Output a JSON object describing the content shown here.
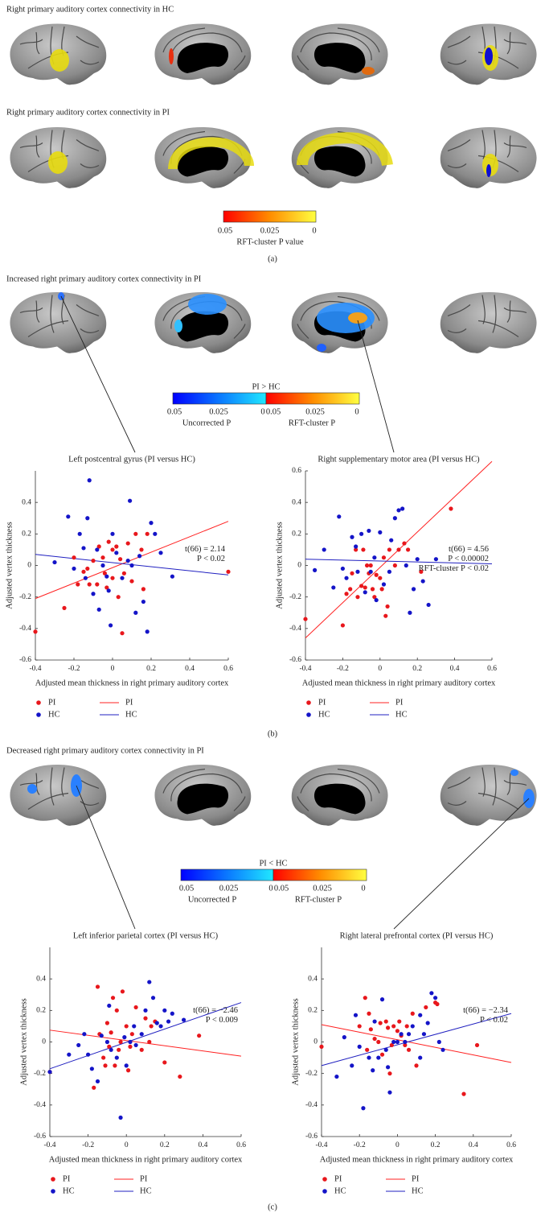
{
  "panel_a": {
    "title_hc": "Right primary auditory cortex connectivity in HC",
    "title_pi": "Right primary auditory cortex connectivity in PI",
    "colorbar": {
      "lim": [
        0.05,
        0
      ],
      "ticks": [
        0.05,
        0.025,
        0
      ],
      "caption": "RFT-cluster P value"
    },
    "label": "(a)"
  },
  "panel_b": {
    "title": "Increased right primary auditory cortex connectivity in PI",
    "colorbar": {
      "title": "PI > HC",
      "uncorrected": {
        "lim": [
          0.05,
          0
        ],
        "ticks": [
          0.05,
          0.025,
          0
        ],
        "caption": "Uncorrected P"
      },
      "rft": {
        "lim": [
          0.05,
          0
        ],
        "ticks": [
          0.05,
          0.025,
          0
        ],
        "caption": "RFT-cluster P"
      }
    },
    "label": "(b)"
  },
  "panel_c": {
    "title": "Decreased right primary auditory cortex connectivity in PI",
    "colorbar": {
      "title": "PI < HC",
      "uncorrected": {
        "lim": [
          0.05,
          0
        ],
        "ticks": [
          0.05,
          0.025,
          0
        ],
        "caption": "Uncorrected P"
      },
      "rft": {
        "lim": [
          0.05,
          0
        ],
        "ticks": [
          0.05,
          0.025,
          0
        ],
        "caption": "RFT-cluster P"
      }
    },
    "label": "(c)"
  },
  "chart_data": [
    {
      "type": "scatter",
      "title": "Left postcentral gyrus (PI versus HC)",
      "xlabel": "Adjusted mean thickness in right primary auditory cortex",
      "ylabel": "Adjusted vertex thickness",
      "xlim": [
        -0.4,
        0.6
      ],
      "ylim": [
        -0.6,
        0.6
      ],
      "xticks": [
        -0.4,
        -0.2,
        0,
        0.2,
        0.4,
        0.6
      ],
      "yticks": [
        -0.6,
        -0.4,
        -0.2,
        0,
        0.2,
        0.4
      ],
      "series": [
        {
          "name": "PI",
          "color": "#e8171c",
          "x": [
            -0.4,
            -0.25,
            -0.2,
            -0.18,
            -0.15,
            -0.12,
            -0.1,
            -0.08,
            -0.07,
            -0.05,
            -0.04,
            -0.03,
            -0.02,
            0,
            0,
            0.02,
            0.03,
            0.05,
            0.06,
            0.08,
            0.1,
            0.12,
            0.15,
            0.16,
            0.18,
            0.6,
            -0.13,
            0.04
          ],
          "values": [
            -0.42,
            -0.27,
            0.05,
            -0.12,
            -0.04,
            -0.12,
            0.03,
            -0.12,
            0.12,
            0.05,
            -0.05,
            -0.14,
            0.15,
            0.1,
            -0.08,
            0.12,
            -0.2,
            -0.43,
            -0.05,
            0.14,
            -0.1,
            0.2,
            0.1,
            -0.15,
            0.2,
            -0.04,
            -0.02,
            0.04
          ]
        },
        {
          "name": "HC",
          "color": "#1414c8",
          "x": [
            -0.3,
            -0.23,
            -0.2,
            -0.17,
            -0.15,
            -0.13,
            -0.12,
            -0.1,
            -0.08,
            -0.07,
            -0.05,
            -0.03,
            -0.02,
            -0.01,
            0,
            0.02,
            0.05,
            0.08,
            0.09,
            0.1,
            0.12,
            0.14,
            0.16,
            0.18,
            0.2,
            0.22,
            0.25,
            0.31,
            -0.14
          ],
          "values": [
            0.02,
            0.31,
            -0.02,
            0.2,
            0.11,
            0.3,
            0.54,
            -0.18,
            0.1,
            -0.28,
            0,
            -0.07,
            -0.16,
            -0.38,
            0.2,
            0.08,
            -0.08,
            0.03,
            0.41,
            0,
            -0.3,
            0.06,
            -0.23,
            -0.42,
            0.27,
            0.2,
            0.08,
            -0.07,
            -0.08
          ]
        }
      ],
      "fit_lines": [
        {
          "name": "PI",
          "color": "#ff2020",
          "x": [
            -0.4,
            0.6
          ],
          "values": [
            -0.21,
            0.28
          ]
        },
        {
          "name": "HC",
          "color": "#2020c0",
          "x": [
            -0.4,
            0.6
          ],
          "values": [
            0.07,
            -0.06
          ]
        }
      ],
      "annotations": [
        "t(66) = 2.14",
        "P < 0.02"
      ]
    },
    {
      "type": "scatter",
      "title": "Right supplementary motor area (PI versus HC)",
      "xlabel": "Adjusted mean thickness in right primary auditory cortex",
      "ylabel": "Adjusted vertex thickness",
      "xlim": [
        -0.4,
        0.6
      ],
      "ylim": [
        -0.6,
        0.6
      ],
      "xticks": [
        -0.4,
        -0.2,
        0,
        0.2,
        0.4,
        0.6
      ],
      "yticks": [
        -0.6,
        -0.4,
        -0.2,
        0,
        0.2,
        0.4,
        0.6
      ],
      "series": [
        {
          "name": "PI",
          "color": "#e8171c",
          "x": [
            -0.4,
            -0.2,
            -0.18,
            -0.16,
            -0.15,
            -0.13,
            -0.12,
            -0.1,
            -0.08,
            -0.07,
            -0.06,
            -0.05,
            -0.04,
            -0.03,
            -0.02,
            0,
            0.01,
            0.02,
            0.03,
            0.04,
            0.05,
            0.08,
            0.1,
            0.13,
            0.15,
            0.22,
            0.38,
            -0.09
          ],
          "values": [
            -0.34,
            -0.38,
            -0.18,
            -0.15,
            -0.05,
            0.1,
            -0.2,
            -0.13,
            -0.14,
            0,
            -0.05,
            0,
            -0.15,
            -0.2,
            -0.06,
            -0.08,
            -0.15,
            0.05,
            -0.32,
            -0.26,
            0.1,
            0,
            0.1,
            0.14,
            0.1,
            -0.04,
            0.36,
            0.1
          ]
        },
        {
          "name": "HC",
          "color": "#1414c8",
          "x": [
            -0.3,
            -0.25,
            -0.22,
            -0.2,
            -0.18,
            -0.15,
            -0.13,
            -0.12,
            -0.1,
            -0.08,
            -0.06,
            -0.05,
            -0.03,
            -0.02,
            0,
            0.02,
            0.05,
            0.06,
            0.08,
            0.1,
            0.12,
            0.14,
            0.16,
            0.18,
            0.2,
            0.23,
            0.26,
            0.3,
            -0.35
          ],
          "values": [
            0.1,
            -0.14,
            0.31,
            -0.02,
            -0.08,
            0.18,
            0.12,
            -0.04,
            0.2,
            -0.17,
            0.22,
            -0.04,
            0.05,
            -0.22,
            0.21,
            -0.12,
            -0.04,
            0.16,
            0.3,
            0.35,
            0.36,
            0,
            -0.3,
            -0.15,
            0.04,
            -0.1,
            -0.25,
            0.04,
            -0.03
          ]
        }
      ],
      "fit_lines": [
        {
          "name": "PI",
          "color": "#ff2020",
          "x": [
            -0.4,
            0.6
          ],
          "values": [
            -0.46,
            0.66
          ]
        },
        {
          "name": "HC",
          "color": "#2020c0",
          "x": [
            -0.4,
            0.6
          ],
          "values": [
            0.04,
            0.01
          ]
        }
      ],
      "annotations": [
        "t(66) = 4.56",
        "P < 0.00002",
        "RFT-cluster P < 0.02"
      ]
    },
    {
      "type": "scatter",
      "title": "Left inferior parietal cortex (PI versus HC)",
      "xlabel": "Adjusted mean thickness in right primary auditory cortex",
      "ylabel": "Adjusted vertex thickness",
      "xlim": [
        -0.4,
        0.6
      ],
      "ylim": [
        -0.6,
        0.6
      ],
      "xticks": [
        -0.4,
        -0.2,
        0,
        0.2,
        0.4,
        0.6
      ],
      "yticks": [
        -0.6,
        -0.4,
        -0.2,
        0,
        0.2,
        0.4
      ],
      "series": [
        {
          "name": "PI",
          "color": "#e8171c",
          "x": [
            -0.4,
            -0.17,
            -0.15,
            -0.14,
            -0.12,
            -0.1,
            -0.09,
            -0.08,
            -0.07,
            -0.06,
            -0.05,
            -0.04,
            -0.03,
            -0.02,
            0,
            0.01,
            0.02,
            0.03,
            0.05,
            0.08,
            0.1,
            0.12,
            0.15,
            0.2,
            0.28,
            0.38,
            -0.11,
            0.13
          ],
          "values": [
            -0.19,
            -0.29,
            0.35,
            0.05,
            -0.1,
            0.12,
            -0.03,
            0.06,
            0.28,
            -0.15,
            0.2,
            -0.05,
            0,
            0.32,
            0.1,
            -0.18,
            -0.03,
            0.05,
            0.22,
            -0.05,
            0.15,
            0,
            0.13,
            -0.13,
            -0.22,
            0.04,
            -0.15,
            0.1
          ]
        },
        {
          "name": "HC",
          "color": "#1414c8",
          "x": [
            -0.4,
            -0.3,
            -0.25,
            -0.22,
            -0.2,
            -0.18,
            -0.15,
            -0.13,
            -0.1,
            -0.08,
            -0.05,
            -0.03,
            -0.01,
            0,
            0.02,
            0.04,
            0.05,
            0.08,
            0.1,
            0.12,
            0.14,
            0.16,
            0.18,
            0.2,
            0.22,
            0.24,
            0.3,
            -0.09
          ],
          "values": [
            -0.19,
            -0.08,
            -0.02,
            0.05,
            -0.08,
            -0.17,
            -0.25,
            0.04,
            0,
            -0.05,
            -0.1,
            -0.48,
            0.03,
            -0.15,
            0,
            0.1,
            -0.02,
            0.05,
            0.2,
            0.38,
            0.28,
            0.12,
            0.1,
            0.2,
            0.13,
            0.18,
            0.14,
            0.23
          ]
        }
      ],
      "fit_lines": [
        {
          "name": "PI",
          "color": "#ff2020",
          "x": [
            -0.4,
            0.6
          ],
          "values": [
            0.075,
            -0.09
          ]
        },
        {
          "name": "HC",
          "color": "#2020c0",
          "x": [
            -0.4,
            0.6
          ],
          "values": [
            -0.17,
            0.25
          ]
        }
      ],
      "annotations": [
        "t(66) = −2.46",
        "P < 0.009"
      ]
    },
    {
      "type": "scatter",
      "title": "Right lateral prefrontal cortex (PI versus HC)",
      "xlabel": "Adjusted mean thickness in right primary auditory cortex",
      "ylabel": "Adjusted vertex thickness",
      "xlim": [
        -0.4,
        0.6
      ],
      "ylim": [
        -0.6,
        0.6
      ],
      "xticks": [
        -0.4,
        -0.2,
        0,
        0.2,
        0.4,
        0.6
      ],
      "yticks": [
        -0.6,
        -0.4,
        -0.2,
        0,
        0.2,
        0.4
      ],
      "series": [
        {
          "name": "PI",
          "color": "#e8171c",
          "x": [
            -0.4,
            -0.2,
            -0.17,
            -0.16,
            -0.14,
            -0.12,
            -0.1,
            -0.09,
            -0.08,
            -0.06,
            -0.05,
            -0.04,
            -0.03,
            -0.02,
            0,
            0.01,
            0.02,
            0.04,
            0.06,
            0.08,
            0.1,
            0.15,
            0.2,
            0.21,
            0.35,
            0.42,
            -0.15,
            0.05
          ],
          "values": [
            -0.03,
            0.1,
            0.28,
            -0.05,
            0.08,
            0.02,
            0,
            0.12,
            -0.08,
            0.13,
            0.09,
            -0.2,
            -0.02,
            0.1,
            0.07,
            0.13,
            0.04,
            -0.02,
            -0.05,
            0.18,
            -0.15,
            0.22,
            0.25,
            0.24,
            -0.33,
            -0.02,
            0.18,
            0.1
          ]
        },
        {
          "name": "HC",
          "color": "#1414c8",
          "x": [
            -0.32,
            -0.28,
            -0.24,
            -0.22,
            -0.2,
            -0.18,
            -0.15,
            -0.13,
            -0.1,
            -0.08,
            -0.06,
            -0.05,
            -0.04,
            -0.02,
            0,
            0.02,
            0.04,
            0.06,
            0.08,
            0.12,
            0.14,
            0.16,
            0.18,
            0.2,
            0.22,
            0.24,
            0.12,
            -0.12
          ],
          "values": [
            -0.22,
            0.03,
            -0.15,
            0.17,
            -0.03,
            -0.42,
            -0.1,
            -0.18,
            -0.1,
            0.27,
            -0.05,
            -0.16,
            -0.32,
            0,
            0,
            0.05,
            0,
            0.05,
            0.1,
            0.17,
            0.05,
            0.12,
            0.31,
            0.28,
            0,
            -0.05,
            -0.1,
            0.13
          ]
        }
      ],
      "fit_lines": [
        {
          "name": "PI",
          "color": "#ff2020",
          "x": [
            -0.4,
            0.6
          ],
          "values": [
            0.11,
            -0.13
          ]
        },
        {
          "name": "HC",
          "color": "#2020c0",
          "x": [
            -0.4,
            0.6
          ],
          "values": [
            -0.15,
            0.18
          ]
        }
      ],
      "annotations": [
        "t(66) = −2.34",
        "P < 0.02"
      ]
    }
  ]
}
